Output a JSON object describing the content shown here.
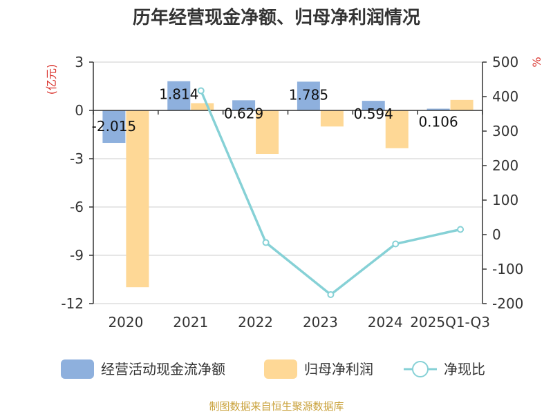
{
  "chart_data": {
    "type": "bar",
    "title": "历年经营现金净额、归母净利润情况",
    "categories": [
      "2020",
      "2021",
      "2022",
      "2023",
      "2024",
      "2025Q1-Q3"
    ],
    "left_axis": {
      "unit": "(亿元)",
      "ticks": [
        "3",
        "0",
        "-3",
        "-6",
        "-9",
        "-12"
      ],
      "ylim": [
        -12,
        3
      ]
    },
    "right_axis": {
      "unit": "%",
      "ticks": [
        "500",
        "400",
        "300",
        "200",
        "100",
        "0",
        "-100",
        "-200"
      ],
      "ylim": [
        -200,
        500
      ]
    },
    "series": [
      {
        "name": "经营活动现金流净额",
        "type": "bar",
        "axis": "left",
        "color": "#8eb0dd",
        "values": [
          -2.015,
          1.814,
          0.629,
          1.785,
          0.594,
          0.106
        ],
        "labels": [
          "-2.015",
          "1.814",
          "0.629",
          "1.785",
          "0.594",
          "0.106"
        ]
      },
      {
        "name": "归母净利润",
        "type": "bar",
        "axis": "left",
        "color": "#fed896",
        "values": [
          -10.98,
          0.45,
          -2.7,
          -1.0,
          -2.35,
          0.65
        ]
      },
      {
        "name": "净现比",
        "type": "line",
        "axis": "right",
        "color": "#86d1d6",
        "values": [
          null,
          417,
          -23,
          -174,
          -27,
          15
        ]
      }
    ],
    "grid": true,
    "legend_position": "bottom"
  },
  "footer": {
    "source": "制图数据来自恒生聚源数据库",
    "source_color": "#c9a13a"
  },
  "colors": {
    "right_unit": "#d9322c",
    "left_unit": "#d9322c"
  }
}
